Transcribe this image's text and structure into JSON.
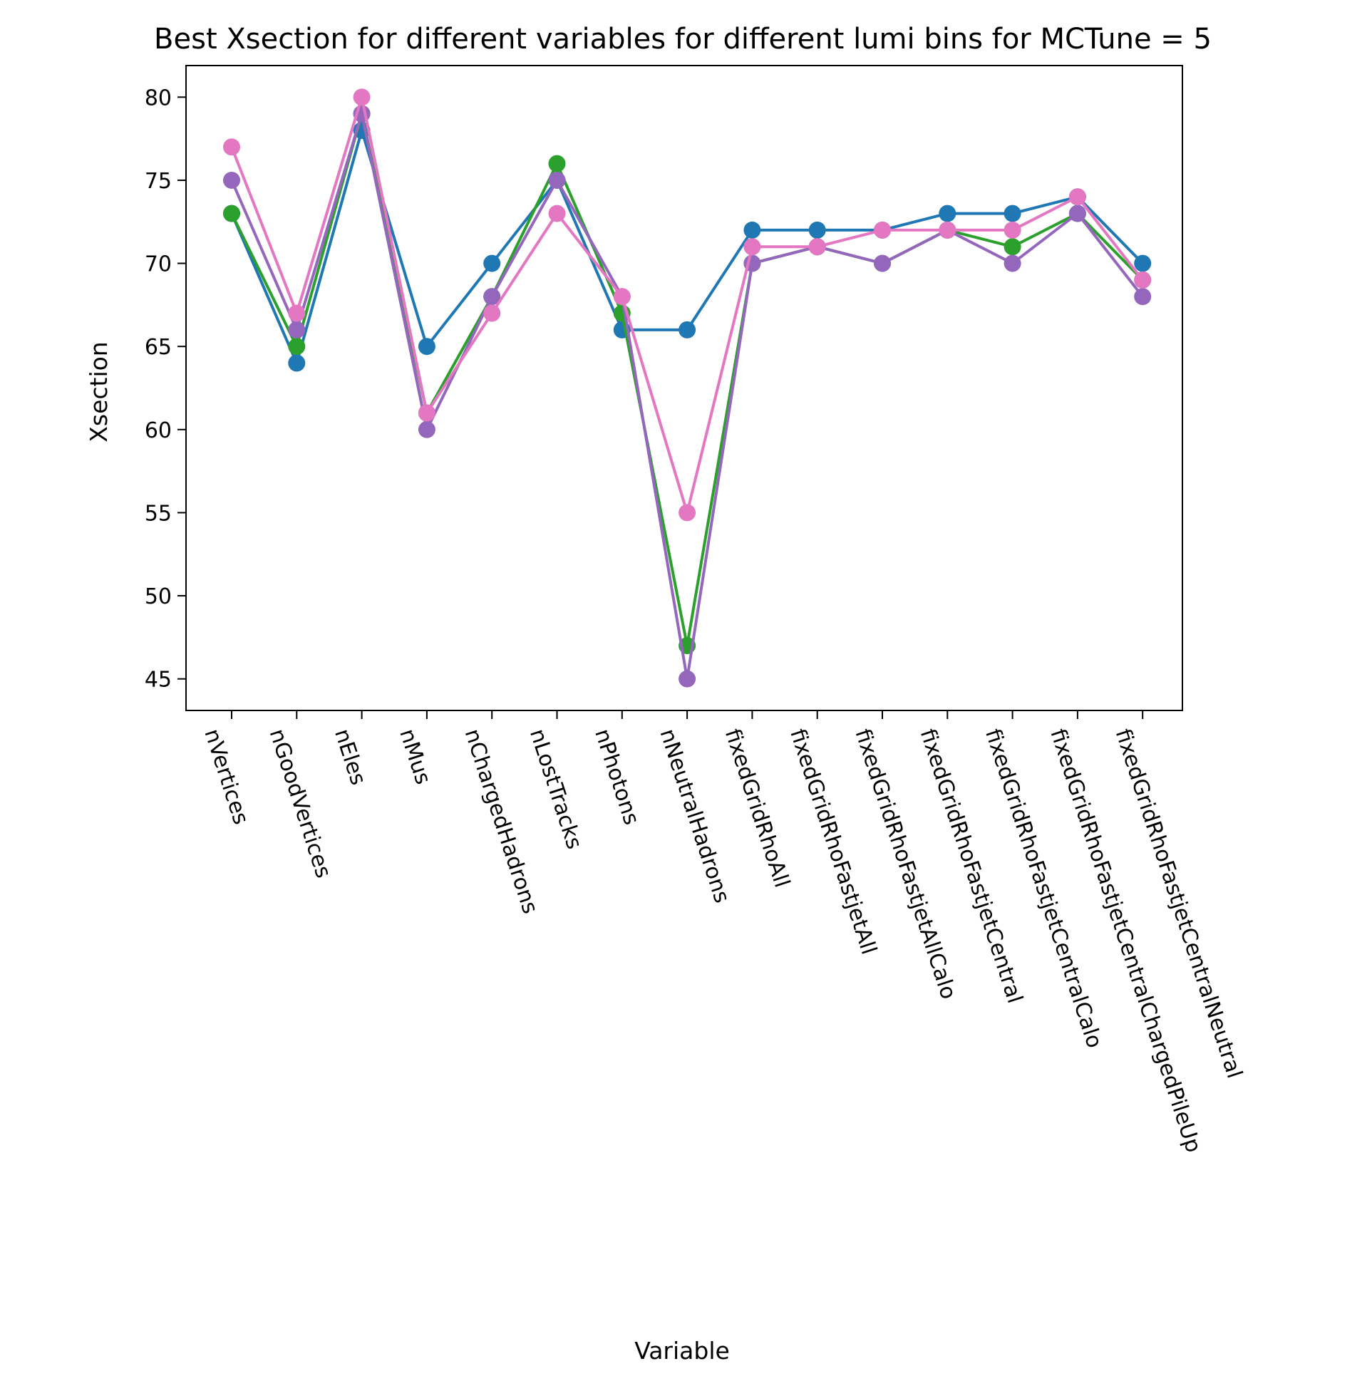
{
  "chart_data": {
    "type": "line",
    "title": "Best Xsection for different variables for different lumi bins for MCTune = 5",
    "xlabel": "Variable",
    "ylabel": "Xsection",
    "categories": [
      "nVertices",
      "nGoodVertices",
      "nEles",
      "nMus",
      "nChargedHadrons",
      "nLostTracks",
      "nPhotons",
      "nNeutralHadrons",
      "fixedGridRhoAll",
      "fixedGridRhoFastjetAll",
      "fixedGridRhoFastjetAllCalo",
      "fixedGridRhoFastjetCentral",
      "fixedGridRhoFastjetCentralCalo",
      "fixedGridRhoFastjetCentralChargedPileUp",
      "fixedGridRhoFastjetCentralNeutral"
    ],
    "ylim": [
      43.1,
      81.9
    ],
    "yticks": [
      45,
      50,
      55,
      60,
      65,
      70,
      75,
      80
    ],
    "grid": false,
    "legend": "none",
    "series": [
      {
        "color": "#1f77b4",
        "values": [
          73,
          64,
          78,
          65,
          70,
          75,
          66,
          66,
          72,
          72,
          72,
          73,
          73,
          74,
          70
        ]
      },
      {
        "color": "#2ca02c",
        "values": [
          73,
          65,
          79,
          61,
          68,
          76,
          67,
          47,
          70,
          71,
          70,
          72,
          71,
          73,
          69
        ]
      },
      {
        "color": "#9467bd",
        "values": [
          75,
          66,
          79,
          60,
          68,
          75,
          68,
          45,
          70,
          71,
          70,
          72,
          70,
          73,
          68
        ]
      },
      {
        "color": "#e377c2",
        "values": [
          77,
          67,
          80,
          61,
          67,
          73,
          68,
          55,
          71,
          71,
          72,
          72,
          72,
          74,
          69
        ]
      }
    ]
  }
}
